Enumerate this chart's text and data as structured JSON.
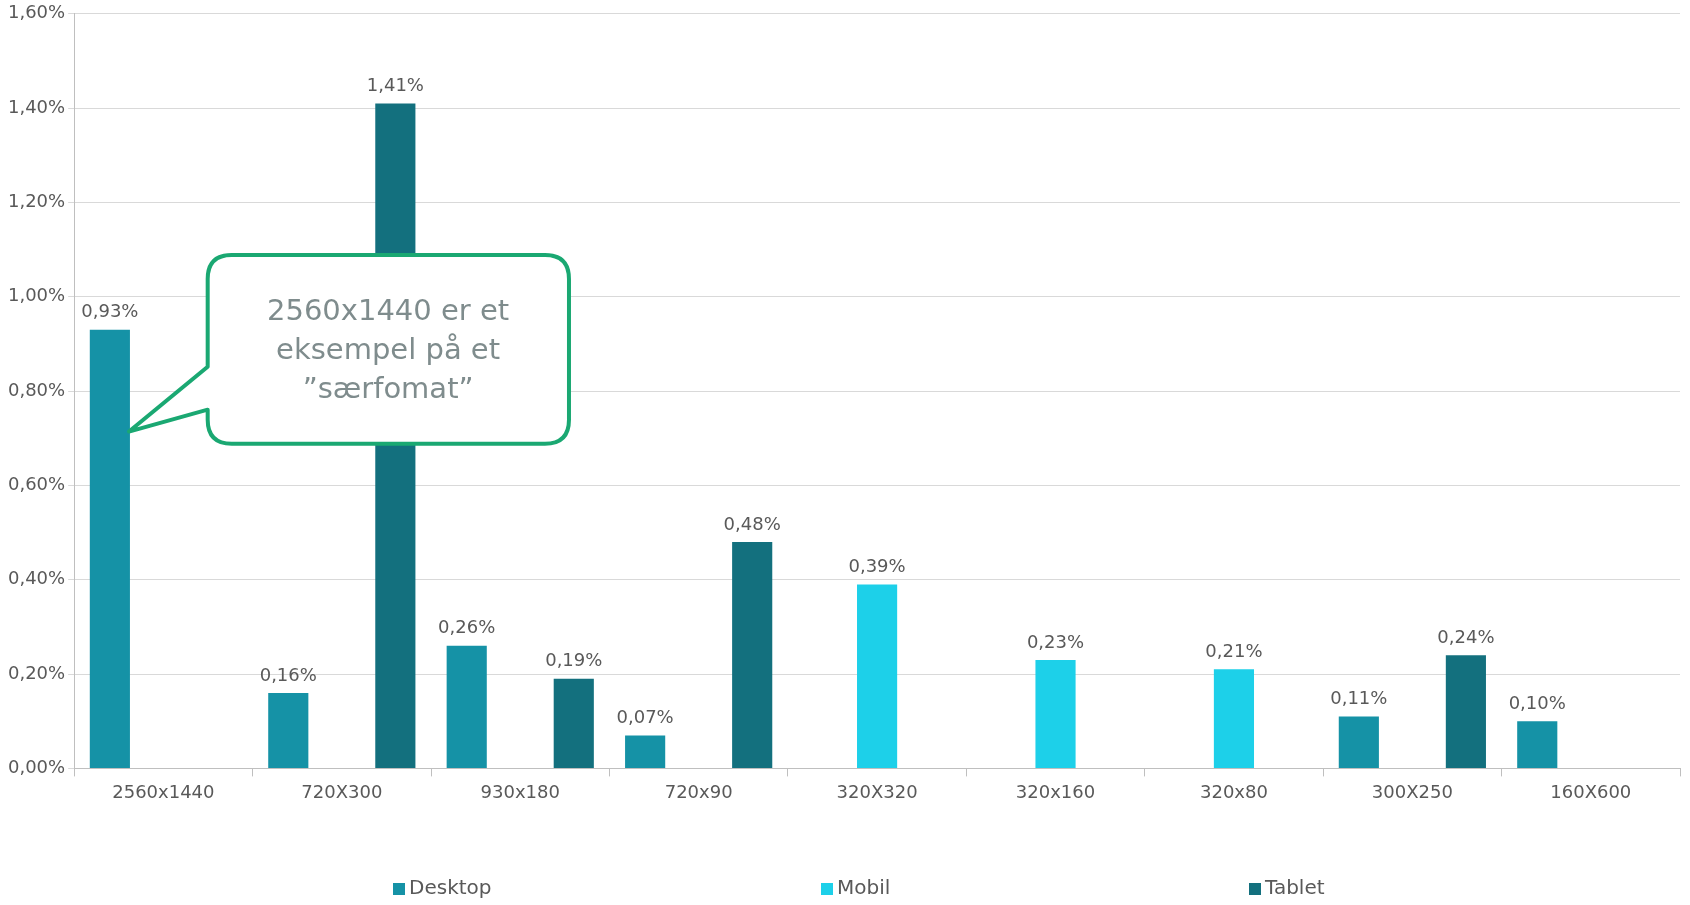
{
  "chart_data": {
    "type": "bar",
    "categories": [
      "2560x1440",
      "720X300",
      "930x180",
      "720x90",
      "320X320",
      "320x160",
      "320x80",
      "300X250",
      "160X600"
    ],
    "series": [
      {
        "name": "Desktop",
        "color": "#1592a6",
        "values": [
          0.93,
          0.16,
          0.26,
          0.07,
          null,
          null,
          null,
          0.11,
          0.1
        ],
        "value_labels": [
          "0,93%",
          "0,16%",
          "0,26%",
          "0,07%",
          null,
          null,
          null,
          "0,11%",
          "0,10%"
        ]
      },
      {
        "name": "Mobil",
        "color": "#1dd0e9",
        "values": [
          null,
          null,
          null,
          null,
          0.39,
          0.23,
          0.21,
          null,
          null
        ],
        "value_labels": [
          null,
          null,
          null,
          null,
          "0,39%",
          "0,23%",
          "0,21%",
          null,
          null
        ]
      },
      {
        "name": "Tablet",
        "color": "#13707e",
        "values": [
          null,
          1.41,
          0.19,
          0.48,
          null,
          null,
          null,
          0.24,
          null
        ],
        "value_labels": [
          null,
          "1,41%",
          "0,19%",
          "0,48%",
          null,
          null,
          null,
          "0,24%",
          null
        ]
      }
    ],
    "ylim": [
      0,
      1.6
    ],
    "yticks": [
      {
        "value": 0,
        "label": "0,00%"
      },
      {
        "value": 0.2,
        "label": "0,20%"
      },
      {
        "value": 0.4,
        "label": "0,40%"
      },
      {
        "value": 0.6,
        "label": "0,60%"
      },
      {
        "value": 0.8,
        "label": "0,80%"
      },
      {
        "value": 1.0,
        "label": "1,00%"
      },
      {
        "value": 1.2,
        "label": "1,20%"
      },
      {
        "value": 1.4,
        "label": "1,40%"
      },
      {
        "value": 1.6,
        "label": "1,60%"
      }
    ],
    "grid": "y",
    "legend": "bottom",
    "annotations": [
      "2560x1440 er et eksempel på et ”særfomat”"
    ]
  }
}
